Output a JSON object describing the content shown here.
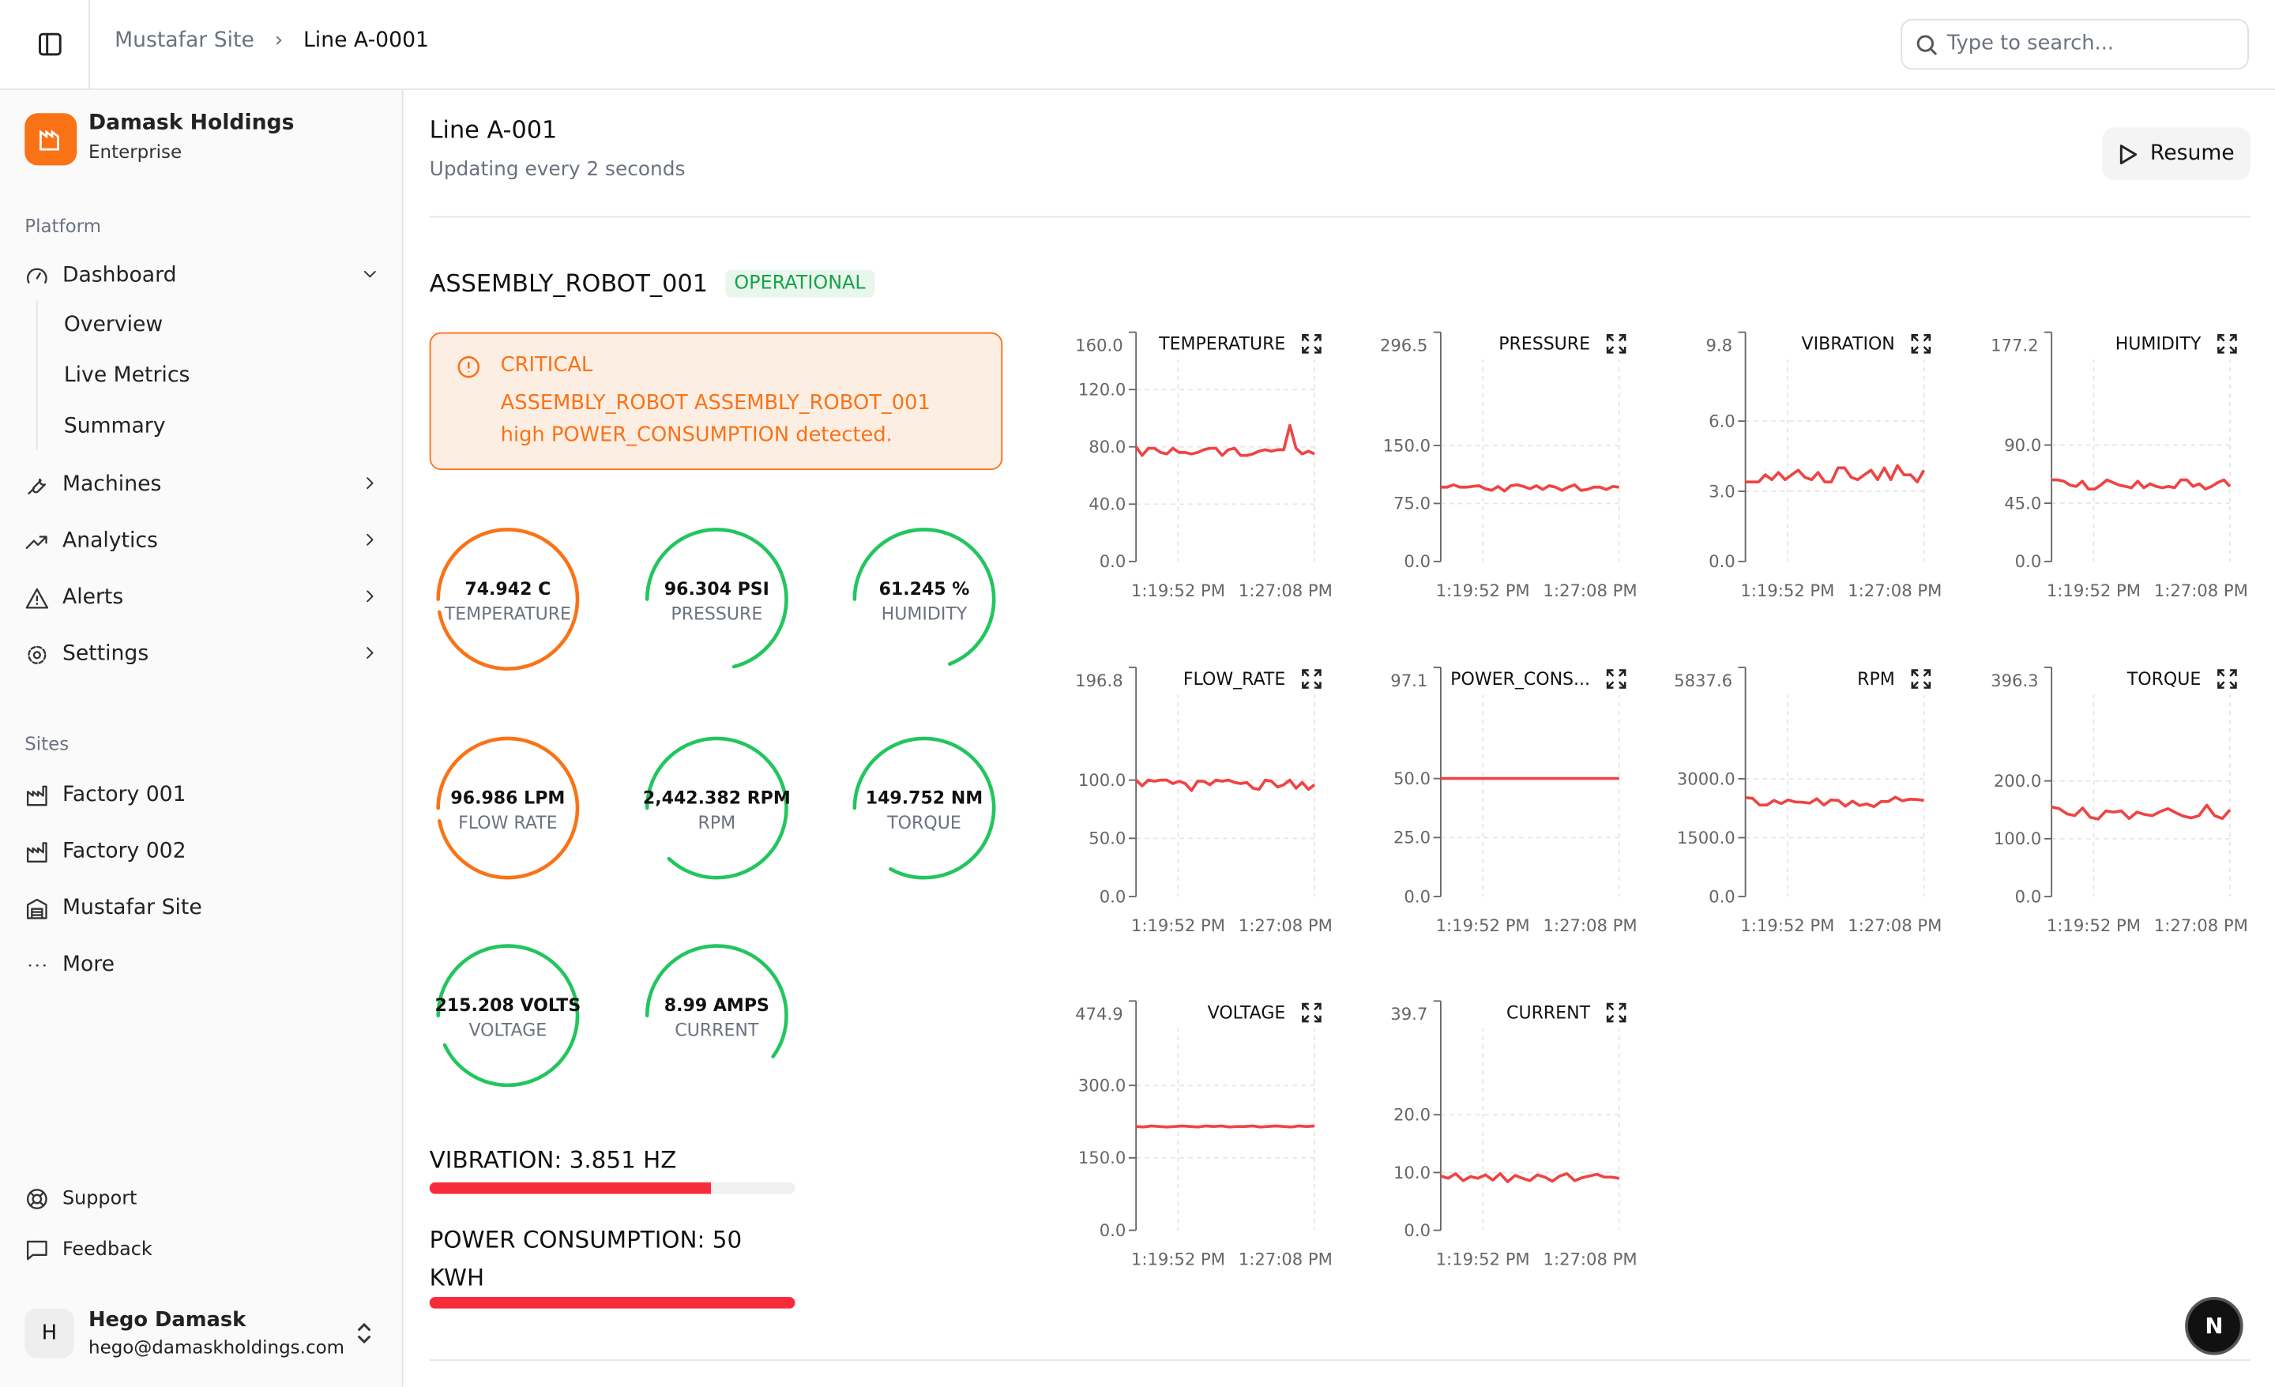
{
  "header": {
    "breadcrumb": [
      "Mustafar Site",
      "Line A-0001"
    ],
    "search_placeholder": "Type to search..."
  },
  "sidebar": {
    "org": {
      "name": "Damask Holdings",
      "plan": "Enterprise"
    },
    "platform_label": "Platform",
    "items": [
      {
        "label": "Dashboard",
        "icon": "gauge-icon"
      },
      {
        "label": "Machines",
        "icon": "wrench-icon"
      },
      {
        "label": "Analytics",
        "icon": "trending-up-icon"
      },
      {
        "label": "Alerts",
        "icon": "alert-triangle-icon"
      },
      {
        "label": "Settings",
        "icon": "gear-icon"
      }
    ],
    "dashboard_sub": [
      "Overview",
      "Live Metrics",
      "Summary"
    ],
    "sites_label": "Sites",
    "sites": [
      "Factory 001",
      "Factory 002",
      "Mustafar Site",
      "More"
    ],
    "footer": [
      "Support",
      "Feedback"
    ],
    "user": {
      "initial": "H",
      "name": "Hego Damask",
      "email": "hego@damaskholdings.com"
    }
  },
  "main": {
    "title": "Line A-001",
    "subtitle": "Updating every 2 seconds",
    "resume_label": "Resume",
    "machine": "ASSEMBLY_ROBOT_001",
    "status": "OPERATIONAL",
    "alert": {
      "level": "CRITICAL",
      "message": "ASSEMBLY_ROBOT ASSEMBLY_ROBOT_001 high POWER_CONSUMPTION detected."
    },
    "gauges": [
      {
        "value": "74.942 C",
        "label": "TEMPERATURE",
        "fraction": 0.97,
        "color": "#f97316"
      },
      {
        "value": "96.304 PSI",
        "label": "PRESSURE",
        "fraction": 0.71,
        "color": "#22c55e"
      },
      {
        "value": "61.245 %",
        "label": "HUMIDITY",
        "fraction": 0.69,
        "color": "#22c55e"
      },
      {
        "value": "96.986 LPM",
        "label": "FLOW RATE",
        "fraction": 0.97,
        "color": "#f97316"
      },
      {
        "value": "2,442.382 RPM",
        "label": "RPM",
        "fraction": 0.87,
        "color": "#22c55e"
      },
      {
        "value": "149.752 NM",
        "label": "TORQUE",
        "fraction": 0.83,
        "color": "#22c55e"
      },
      {
        "value": "215.208 VOLTS",
        "label": "VOLTAGE",
        "fraction": 0.93,
        "color": "#22c55e"
      },
      {
        "value": "8.99 AMPS",
        "label": "CURRENT",
        "fraction": 0.6,
        "color": "#22c55e"
      }
    ],
    "bars": [
      {
        "label": "VIBRATION: 3.851 HZ",
        "fraction": 0.77
      },
      {
        "label": "POWER CONSUMPTION: 50 KWH",
        "fraction": 1.0
      }
    ],
    "fab_label": "N"
  },
  "chart_data": [
    {
      "type": "line",
      "title": "TEMPERATURE",
      "ylim": [
        0,
        160
      ],
      "top_label": "160.0",
      "yticks": [
        "120.0",
        "80.0",
        "40.0",
        "0.0"
      ],
      "ytick_values": [
        120,
        80,
        40,
        0
      ],
      "xticks": [
        "1:19:52 PM",
        "1:27:08 PM"
      ],
      "values": [
        80,
        74,
        79,
        79,
        76,
        75,
        79,
        76,
        76,
        75,
        76,
        78,
        79,
        79,
        74,
        78,
        79,
        74,
        74,
        75,
        77,
        78,
        77,
        78,
        78,
        95,
        79,
        75,
        77,
        75
      ]
    },
    {
      "type": "line",
      "title": "PRESSURE",
      "ylim": [
        0,
        296.5
      ],
      "top_label": "296.5",
      "yticks": [
        "150.0",
        "75.0",
        "0.0"
      ],
      "ytick_values": [
        150,
        75,
        0
      ],
      "xticks": [
        "1:19:52 PM",
        "1:27:08 PM"
      ],
      "values": [
        96,
        96,
        99,
        96,
        96,
        97,
        98,
        94,
        92,
        97,
        91,
        98,
        99,
        97,
        94,
        98,
        93,
        98,
        96,
        92,
        96,
        99,
        92,
        93,
        96,
        96,
        93,
        97,
        96
      ]
    },
    {
      "type": "line",
      "title": "VIBRATION",
      "ylim": [
        0,
        9.8
      ],
      "top_label": "9.8",
      "yticks": [
        "6.0",
        "3.0",
        "0.0"
      ],
      "ytick_values": [
        6,
        3,
        0
      ],
      "xticks": [
        "1:19:52 PM",
        "1:27:08 PM"
      ],
      "values": [
        3.4,
        3.4,
        3.4,
        3.7,
        3.5,
        3.8,
        3.5,
        3.7,
        3.9,
        3.6,
        3.5,
        3.8,
        3.4,
        3.4,
        4.0,
        4.0,
        3.6,
        3.5,
        3.7,
        3.9,
        3.5,
        4.0,
        3.5,
        4.1,
        3.7,
        3.7,
        3.4,
        3.9
      ]
    },
    {
      "type": "line",
      "title": "HUMIDITY",
      "ylim": [
        0,
        177.2
      ],
      "top_label": "177.2",
      "yticks": [
        "90.0",
        "45.0",
        "0.0"
      ],
      "ytick_values": [
        90,
        45,
        0
      ],
      "xticks": [
        "1:19:52 PM",
        "1:27:08 PM"
      ],
      "values": [
        63,
        63,
        62,
        59,
        58,
        62,
        56,
        56,
        59,
        63,
        61,
        59,
        58,
        57,
        62,
        57,
        60,
        58,
        57,
        58,
        57,
        63,
        63,
        58,
        60,
        56,
        58,
        61,
        63,
        58
      ]
    },
    {
      "type": "line",
      "title": "FLOW_RATE",
      "ylim": [
        0,
        196.8
      ],
      "top_label": "196.8",
      "yticks": [
        "100.0",
        "50.0",
        "0.0"
      ],
      "ytick_values": [
        100,
        50,
        0
      ],
      "xticks": [
        "1:19:52 PM",
        "1:27:08 PM"
      ],
      "values": [
        100,
        95,
        100,
        99,
        100,
        100,
        97,
        99,
        97,
        91,
        99,
        99,
        96,
        100,
        99,
        100,
        98,
        97,
        98,
        93,
        92,
        100,
        99,
        94,
        96,
        100,
        93,
        98,
        92,
        96
      ]
    },
    {
      "type": "line",
      "title": "POWER_CONS...",
      "ylim": [
        0,
        97.1
      ],
      "top_label": "97.1",
      "yticks": [
        "50.0",
        "25.0",
        "0.0"
      ],
      "ytick_values": [
        50,
        25,
        0
      ],
      "xticks": [
        "1:19:52 PM",
        "1:27:08 PM"
      ],
      "values": [
        50,
        50,
        50,
        50,
        50,
        50,
        50,
        50,
        50,
        50,
        50,
        50,
        50,
        50,
        50,
        50,
        50,
        50,
        50,
        50,
        50,
        50,
        50,
        50,
        50,
        50,
        50,
        50,
        50,
        50
      ]
    },
    {
      "type": "line",
      "title": "RPM",
      "ylim": [
        0,
        5837.6
      ],
      "top_label": "5837.6",
      "yticks": [
        "3000.0",
        "1500.0",
        "0.0"
      ],
      "ytick_values": [
        3000,
        1500,
        0
      ],
      "xticks": [
        "1:19:52 PM",
        "1:27:08 PM"
      ],
      "values": [
        2520,
        2500,
        2330,
        2330,
        2450,
        2370,
        2460,
        2410,
        2400,
        2380,
        2490,
        2330,
        2460,
        2450,
        2300,
        2430,
        2320,
        2360,
        2290,
        2420,
        2420,
        2530,
        2440,
        2480,
        2470,
        2450
      ]
    },
    {
      "type": "line",
      "title": "TORQUE",
      "ylim": [
        0,
        396.3
      ],
      "top_label": "396.3",
      "yticks": [
        "200.0",
        "100.0",
        "0.0"
      ],
      "ytick_values": [
        200,
        100,
        0
      ],
      "xticks": [
        "1:19:52 PM",
        "1:27:08 PM"
      ],
      "values": [
        155,
        152,
        143,
        140,
        153,
        137,
        134,
        148,
        146,
        148,
        135,
        146,
        142,
        140,
        147,
        152,
        145,
        139,
        136,
        140,
        158,
        140,
        135,
        150
      ]
    },
    {
      "type": "line",
      "title": "VOLTAGE",
      "ylim": [
        0,
        474.9
      ],
      "top_label": "474.9",
      "yticks": [
        "300.0",
        "150.0",
        "0.0"
      ],
      "ytick_values": [
        300,
        150,
        0
      ],
      "xticks": [
        "1:19:52 PM",
        "1:27:08 PM"
      ],
      "values": [
        215,
        214,
        216,
        215,
        214,
        215,
        216,
        215,
        214,
        216,
        215,
        216,
        214,
        215,
        215,
        216,
        214,
        215,
        216,
        215,
        214,
        216,
        215,
        216
      ]
    },
    {
      "type": "line",
      "title": "CURRENT",
      "ylim": [
        0,
        39.7
      ],
      "top_label": "39.7",
      "yticks": [
        "20.0",
        "10.0",
        "0.0"
      ],
      "ytick_values": [
        20,
        10,
        0
      ],
      "xticks": [
        "1:19:52 PM",
        "1:27:08 PM"
      ],
      "values": [
        9.4,
        9.0,
        9.8,
        8.6,
        9.3,
        9.0,
        9.6,
        8.7,
        9.8,
        8.4,
        9.5,
        9.0,
        8.6,
        9.6,
        9.2,
        8.5,
        9.4,
        9.8,
        8.6,
        9.1,
        9.4,
        9.7,
        9.2,
        9.2,
        9.0
      ]
    }
  ]
}
